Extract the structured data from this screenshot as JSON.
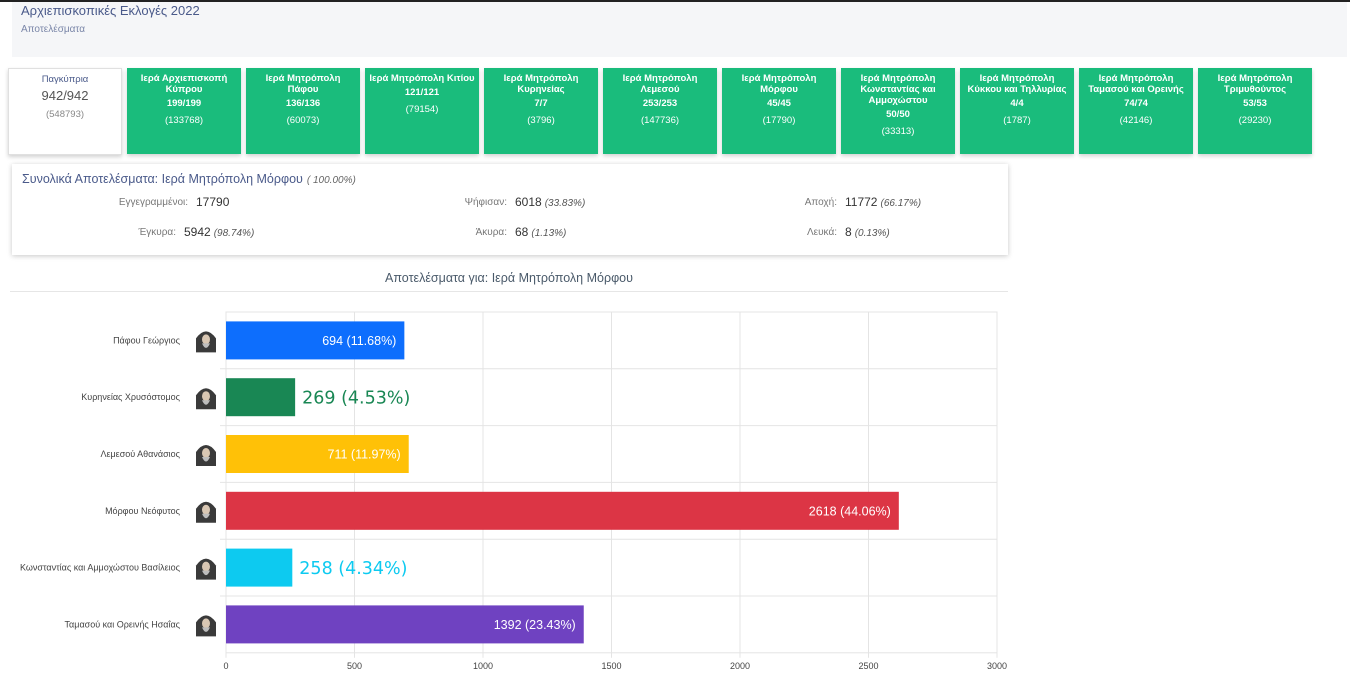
{
  "header": {
    "title": "Αρχιεπισκοπικές Εκλογές 2022",
    "subtitle": "Αποτελέσματα"
  },
  "tiles": [
    {
      "name": "Παγκύπρια",
      "count": "942/942",
      "voters": "(548793)",
      "selected": true
    },
    {
      "name": "Ιερά Αρχιεπισκοπή Κύπρου",
      "count": "199/199",
      "voters": "(133768)"
    },
    {
      "name": "Ιερά Μητρόπολη Πάφου",
      "count": "136/136",
      "voters": "(60073)"
    },
    {
      "name": "Ιερά Μητρόπολη Κιτίου",
      "count": "121/121",
      "voters": "(79154)"
    },
    {
      "name": "Ιερά Μητρόπολη Κυρηνείας",
      "count": "7/7",
      "voters": "(3796)"
    },
    {
      "name": "Ιερά Μητρόπολη Λεμεσού",
      "count": "253/253",
      "voters": "(147736)"
    },
    {
      "name": "Ιερά Μητρόπολη Μόρφου",
      "count": "45/45",
      "voters": "(17790)"
    },
    {
      "name": "Ιερά Μητρόπολη Κωνσταντίας και Αμμοχώστου",
      "count": "50/50",
      "voters": "(33313)"
    },
    {
      "name": "Ιερά Μητρόπολη Κύκκου και Τηλλυρίας",
      "count": "4/4",
      "voters": "(1787)"
    },
    {
      "name": "Ιερά Μητρόπολη Ταμασού και Ορεινής",
      "count": "74/74",
      "voters": "(42146)"
    },
    {
      "name": "Ιερά Μητρόπολη Τριμυθούντος",
      "count": "53/53",
      "voters": "(29230)"
    }
  ],
  "summary": {
    "title": "Συνολικά Αποτελέσματα: Ιερά Μητρόπολη Μόρφου",
    "title_pct": "( 100.00%)",
    "registered_label": "Εγγεγραμμένοι:",
    "registered": "17790",
    "voted_label": "Ψήφισαν:",
    "voted": "6018",
    "voted_pct": "(33.83%)",
    "abstention_label": "Αποχή:",
    "abstention": "11772",
    "abstention_pct": "(66.17%)",
    "valid_label": "Έγκυρα:",
    "valid": "5942",
    "valid_pct": "(98.74%)",
    "invalid_label": "Άκυρα:",
    "invalid": "68",
    "invalid_pct": "(1.13%)",
    "blank_label": "Λευκά:",
    "blank": "8",
    "blank_pct": "(0.13%)"
  },
  "chart_title": "Αποτελέσματα για: Ιερά Μητρόπολη Μόρφου",
  "chart_data": {
    "type": "bar",
    "orientation": "horizontal",
    "categories": [
      "Πάφου Γεώργιος",
      "Κυρηνείας Χρυσόστομος",
      "Λεμεσού Αθανάσιος",
      "Μόρφου Νεόφυτος",
      "Κωνσταντίας και Αμμοχώστου Βασίλειος",
      "Ταμασού και Ορεινής Ησαΐας"
    ],
    "values": [
      694,
      269,
      711,
      2618,
      258,
      1392
    ],
    "labels": [
      "694 (11.68%)",
      "269 (4.53%)",
      "711 (11.97%)",
      "2618 (44.06%)",
      "258 (4.34%)",
      "1392 (23.43%)"
    ],
    "colors": [
      "#0d6efd",
      "#198754",
      "#ffc107",
      "#dc3545",
      "#0dcaf0",
      "#6f42c1"
    ],
    "xlim": [
      0,
      3000
    ],
    "xticks": [
      "0",
      "500",
      "1000",
      "1500",
      "2000",
      "2500",
      "3000"
    ],
    "grid": true
  }
}
